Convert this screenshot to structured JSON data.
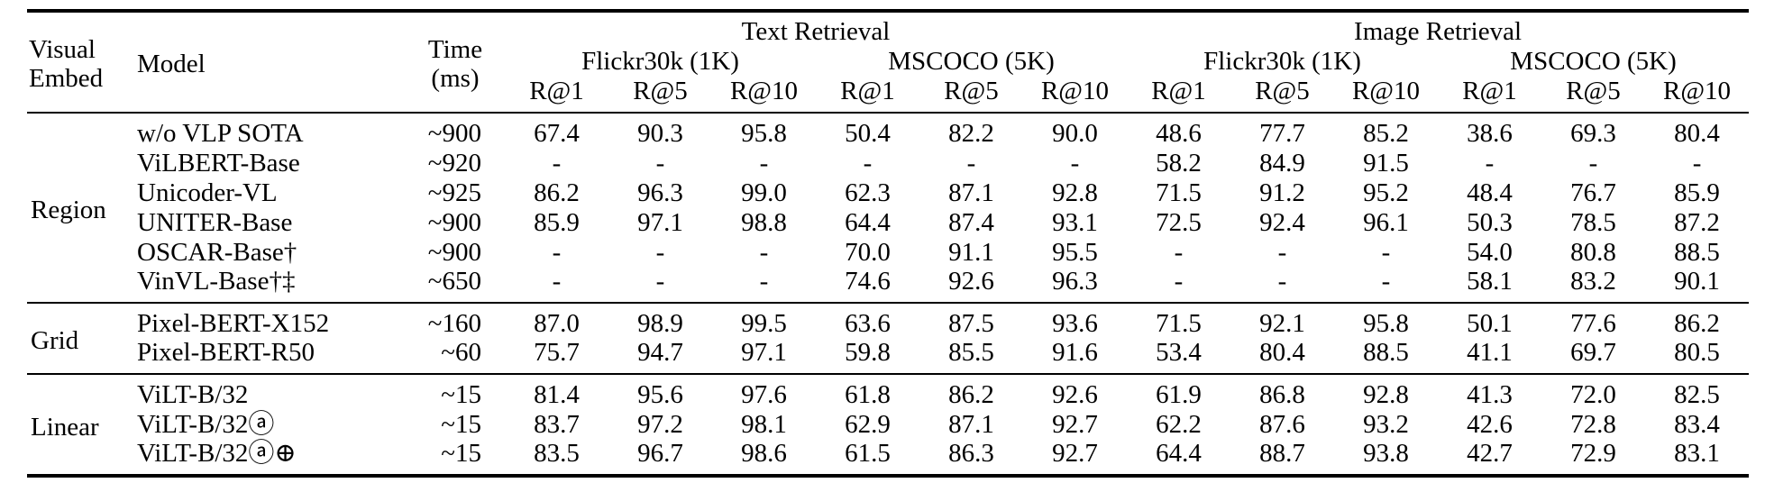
{
  "table": {
    "header": {
      "visual_embed_lines": [
        "Visual",
        "Embed"
      ],
      "model_label": "Model",
      "time_lines": [
        "Time",
        "(ms)"
      ],
      "task_groups": [
        {
          "label": "Text Retrieval"
        },
        {
          "label": "Image Retrieval"
        }
      ],
      "datasets": [
        "Flickr30k (1K)",
        "MSCOCO (5K)",
        "Flickr30k (1K)",
        "MSCOCO (5K)"
      ],
      "metrics": [
        "R@1",
        "R@5",
        "R@10"
      ]
    },
    "body": [
      {
        "group": "Region",
        "rows": [
          {
            "model": "w/o VLP SOTA",
            "time": "~900",
            "values": [
              "67.4",
              "90.3",
              "95.8",
              "50.4",
              "82.2",
              "90.0",
              "48.6",
              "77.7",
              "85.2",
              "38.6",
              "69.3",
              "80.4"
            ]
          },
          {
            "model": "ViLBERT-Base",
            "time": "~920",
            "values": [
              "-",
              "-",
              "-",
              "-",
              "-",
              "-",
              "58.2",
              "84.9",
              "91.5",
              "-",
              "-",
              "-"
            ]
          },
          {
            "model": "Unicoder-VL",
            "time": "~925",
            "values": [
              "86.2",
              "96.3",
              "99.0",
              "62.3",
              "87.1",
              "92.8",
              "71.5",
              "91.2",
              "95.2",
              "48.4",
              "76.7",
              "85.9"
            ]
          },
          {
            "model": "UNITER-Base",
            "time": "~900",
            "values": [
              "85.9",
              "97.1",
              "98.8",
              "64.4",
              "87.4",
              "93.1",
              "72.5",
              "92.4",
              "96.1",
              "50.3",
              "78.5",
              "87.2"
            ]
          },
          {
            "model": "OSCAR-Base†",
            "time": "~900",
            "values": [
              "-",
              "-",
              "-",
              "70.0",
              "91.1",
              "95.5",
              "-",
              "-",
              "-",
              "54.0",
              "80.8",
              "88.5"
            ]
          },
          {
            "model": "VinVL-Base†‡",
            "time": "~650",
            "values": [
              "-",
              "-",
              "-",
              "74.6",
              "92.6",
              "96.3",
              "-",
              "-",
              "-",
              "58.1",
              "83.2",
              "90.1"
            ]
          }
        ]
      },
      {
        "group": "Grid",
        "rows": [
          {
            "model": "Pixel-BERT-X152",
            "time": "~160",
            "values": [
              "87.0",
              "98.9",
              "99.5",
              "63.6",
              "87.5",
              "93.6",
              "71.5",
              "92.1",
              "95.8",
              "50.1",
              "77.6",
              "86.2"
            ]
          },
          {
            "model": "Pixel-BERT-R50",
            "time": "~60",
            "values": [
              "75.7",
              "94.7",
              "97.1",
              "59.8",
              "85.5",
              "91.6",
              "53.4",
              "80.4",
              "88.5",
              "41.1",
              "69.7",
              "80.5"
            ]
          }
        ]
      },
      {
        "group": "Linear",
        "rows": [
          {
            "model": "ViLT-B/32",
            "time": "~15",
            "values": [
              "81.4",
              "95.6",
              "97.6",
              "61.8",
              "86.2",
              "92.6",
              "61.9",
              "86.8",
              "92.8",
              "41.3",
              "72.0",
              "82.5"
            ]
          },
          {
            "model": "ViLT-B/32ⓐ",
            "time": "~15",
            "values": [
              "83.7",
              "97.2",
              "98.1",
              "62.9",
              "87.1",
              "92.7",
              "62.2",
              "87.6",
              "93.2",
              "42.6",
              "72.8",
              "83.4"
            ]
          },
          {
            "model": "ViLT-B/32ⓐ⊕",
            "time": "~15",
            "values": [
              "83.5",
              "96.7",
              "98.6",
              "61.5",
              "86.3",
              "92.7",
              "64.4",
              "88.7",
              "93.8",
              "42.7",
              "72.9",
              "83.1"
            ]
          }
        ]
      }
    ]
  }
}
